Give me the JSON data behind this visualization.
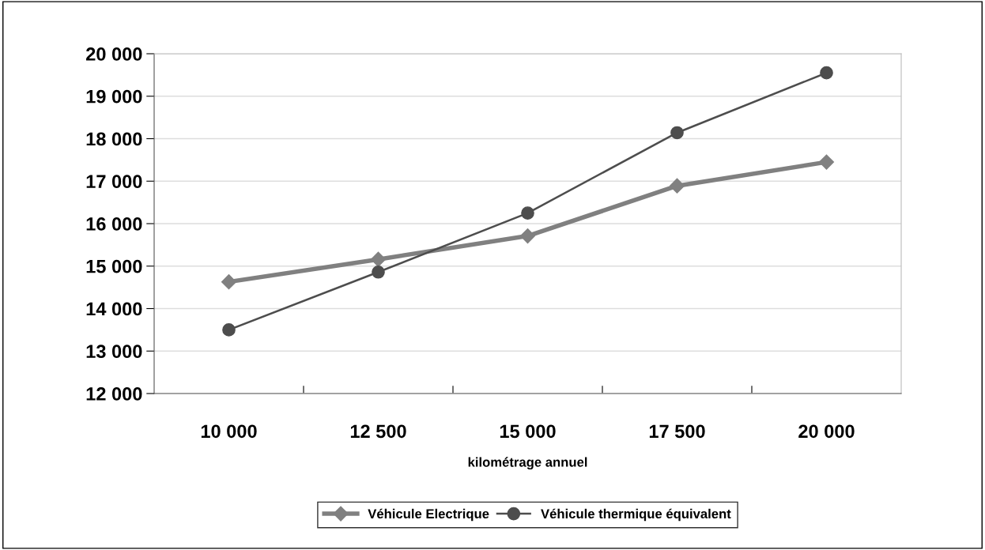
{
  "chart_data": {
    "type": "line",
    "xlabel": "kilométrage annuel",
    "categories": [
      "10 000",
      "12 500",
      "15 000",
      "17 500",
      "20 000"
    ],
    "series": [
      {
        "name": "Véhicule Electrique",
        "color": "#808080",
        "marker": "diamond",
        "values": [
          14630,
          15160,
          15710,
          16890,
          17450
        ]
      },
      {
        "name": "Véhicule thermique équivalent",
        "color": "#4d4d4d",
        "marker": "circle",
        "values": [
          13500,
          14860,
          16250,
          18140,
          19550
        ]
      }
    ],
    "ylim": [
      12000,
      20000
    ],
    "yticks": [
      {
        "value": 12000,
        "label": "12 000"
      },
      {
        "value": 13000,
        "label": "13 000"
      },
      {
        "value": 14000,
        "label": "14 000"
      },
      {
        "value": 15000,
        "label": "15 000"
      },
      {
        "value": 16000,
        "label": "16 000"
      },
      {
        "value": 17000,
        "label": "17 000"
      },
      {
        "value": 18000,
        "label": "18 000"
      },
      {
        "value": 19000,
        "label": "19 000"
      },
      {
        "value": 20000,
        "label": "20 000"
      }
    ],
    "grid": "y",
    "legend": "bottom"
  }
}
